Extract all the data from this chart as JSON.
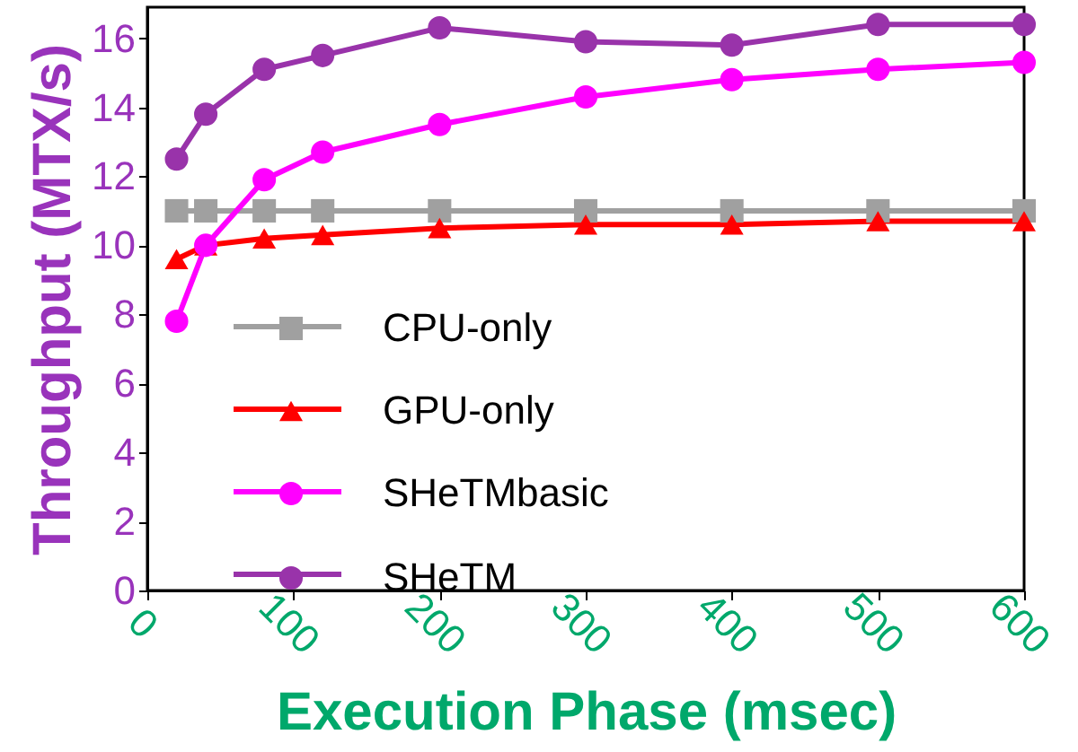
{
  "chart_data": {
    "type": "line",
    "xlabel": "Execution Phase (msec)",
    "ylabel": "Throughput (MTX/s)",
    "x": [
      20,
      40,
      80,
      120,
      200,
      300,
      400,
      500,
      600
    ],
    "xlim": [
      0,
      600
    ],
    "xticks": [
      0,
      100,
      200,
      300,
      400,
      500,
      600
    ],
    "ylim": [
      0,
      16.9
    ],
    "yticks": [
      0,
      2,
      4,
      6,
      8,
      10,
      12,
      14,
      16
    ],
    "grid": false,
    "legend": "bottom left",
    "series": [
      {
        "name": "CPU-only",
        "color": "#a0a0a0",
        "marker": "square",
        "values": [
          11,
          11,
          11,
          11,
          11,
          11,
          11,
          11,
          11
        ]
      },
      {
        "name": "GPU-only",
        "color": "#ff0000",
        "marker": "triangle",
        "values": [
          9.6,
          10.0,
          10.2,
          10.3,
          10.5,
          10.6,
          10.6,
          10.7,
          10.7
        ]
      },
      {
        "name": "SHeTMbasic",
        "color": "#ff00ff",
        "marker": "circle",
        "values": [
          7.8,
          10.0,
          11.9,
          12.7,
          13.5,
          14.3,
          14.8,
          15.1,
          15.3
        ]
      },
      {
        "name": "SHeTM",
        "color": "#9933aa",
        "marker": "circle",
        "values": [
          12.5,
          13.8,
          15.1,
          15.5,
          16.3,
          15.9,
          15.8,
          16.4,
          16.4
        ]
      }
    ]
  }
}
